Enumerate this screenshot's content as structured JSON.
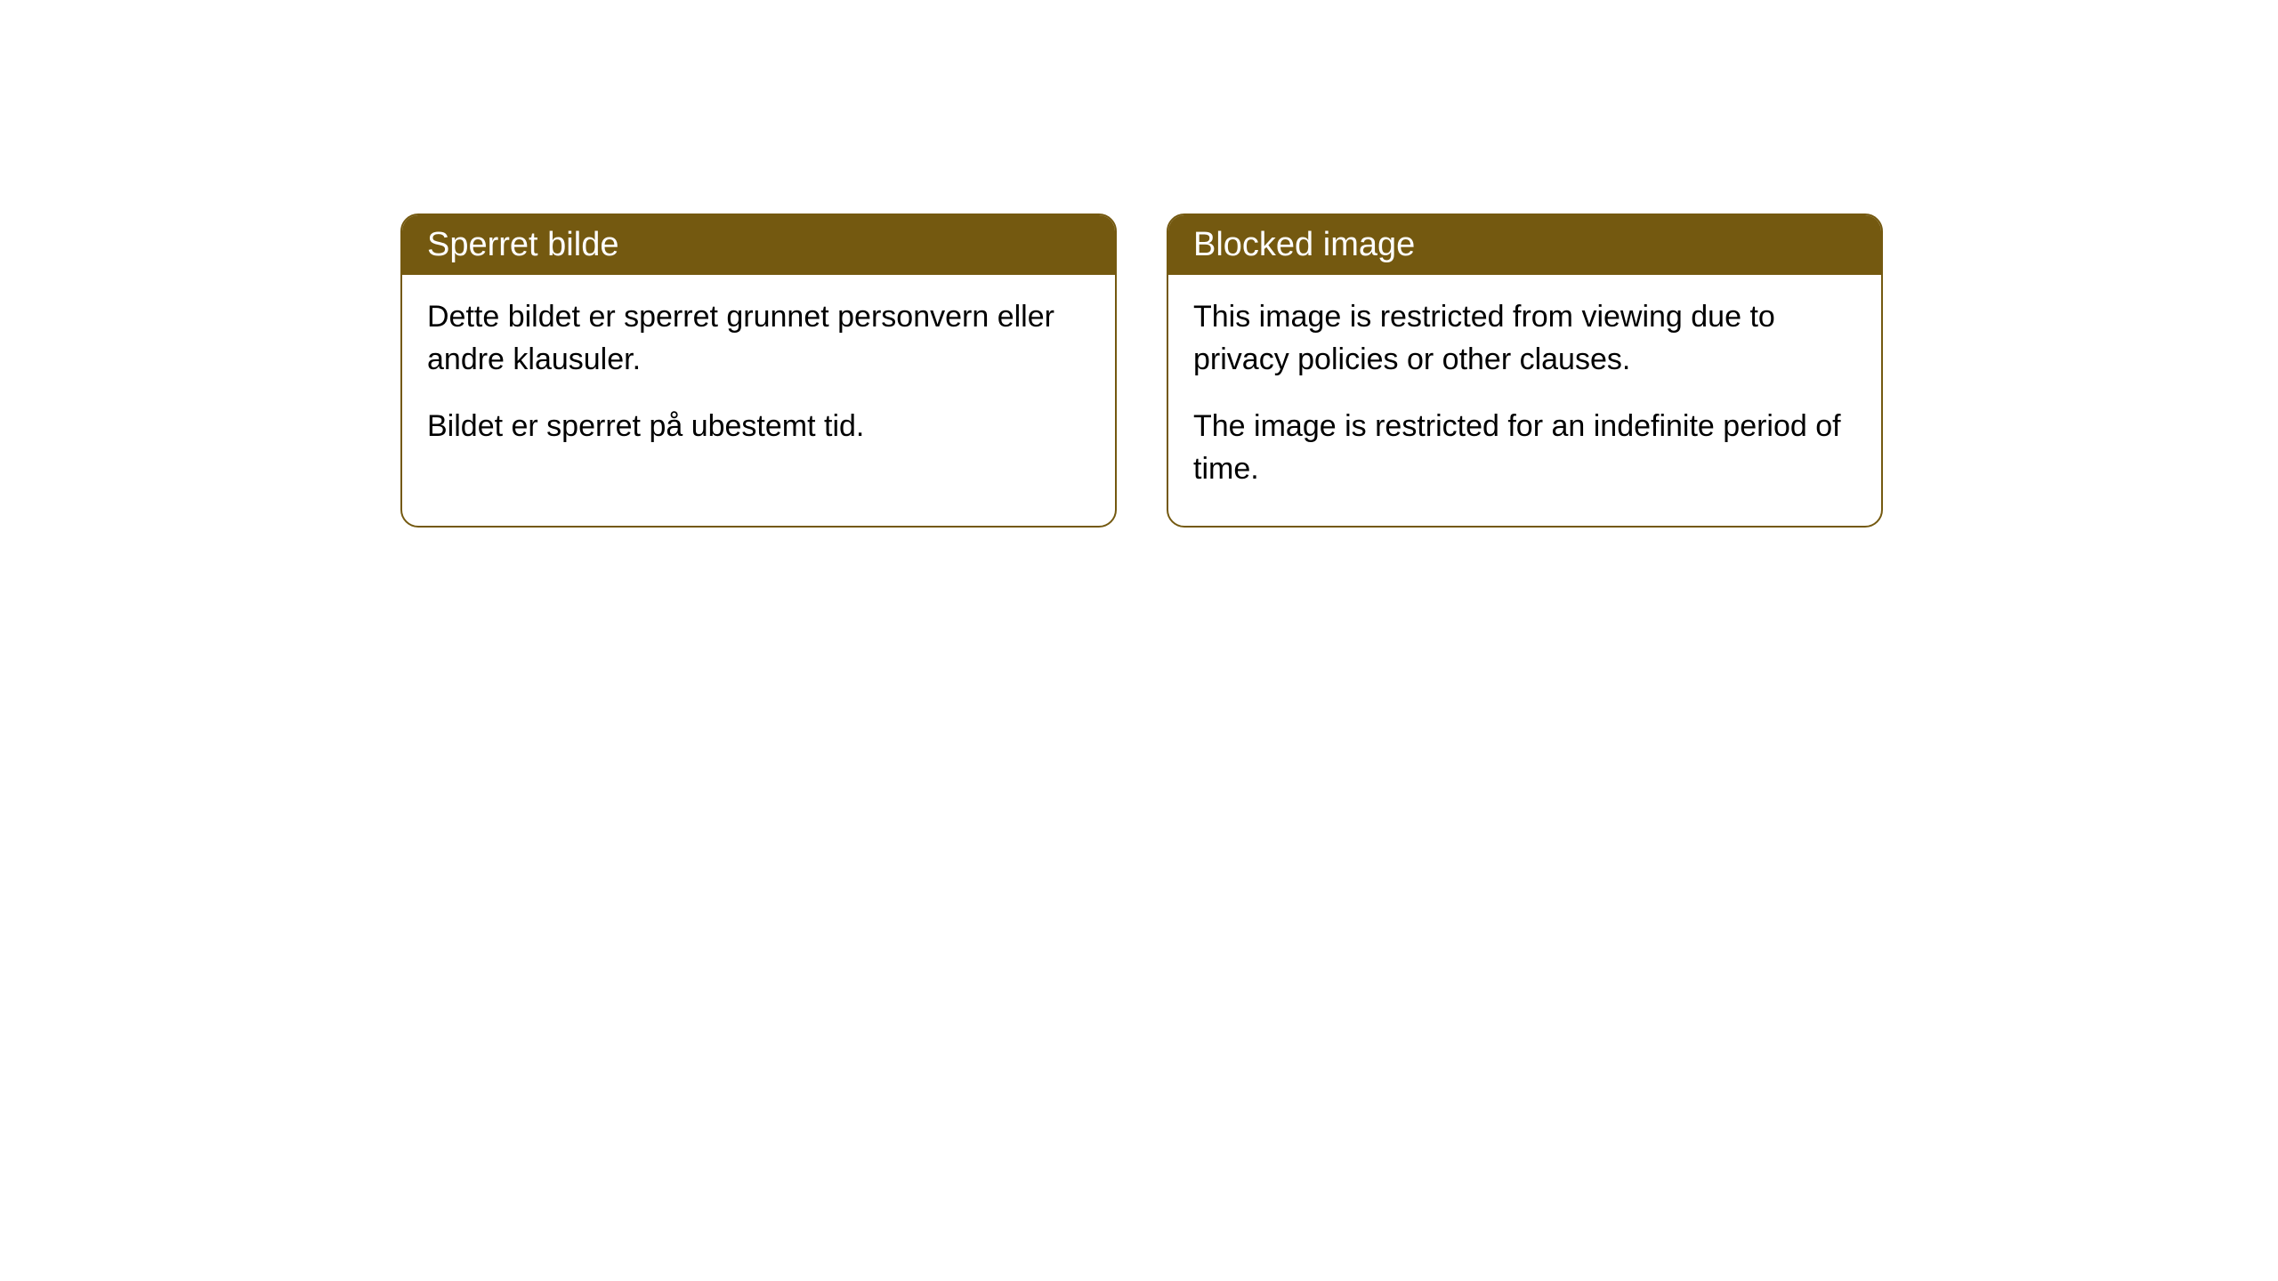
{
  "cards": [
    {
      "title": "Sperret bilde",
      "paragraph1": "Dette bildet er sperret grunnet personvern eller andre klausuler.",
      "paragraph2": "Bildet er sperret på ubestemt tid."
    },
    {
      "title": "Blocked image",
      "paragraph1": "This image is restricted from viewing due to privacy policies or other clauses.",
      "paragraph2": "The image is restricted for an indefinite period of time."
    }
  ],
  "styling": {
    "header_background": "#745910",
    "header_text_color": "#ffffff",
    "border_color": "#745910",
    "body_background": "#ffffff",
    "body_text_color": "#000000",
    "border_radius": 20,
    "header_fontsize": 38,
    "body_fontsize": 34
  }
}
